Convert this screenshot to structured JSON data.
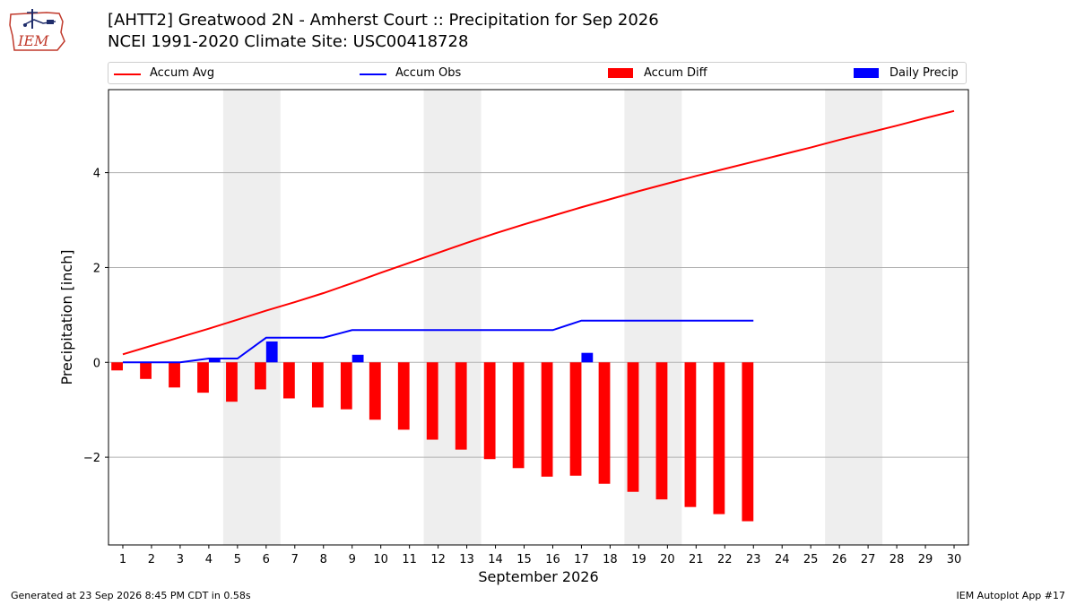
{
  "header": {
    "title": "[AHTT2] Greatwood 2N - Amherst Court :: Precipitation for Sep 2026",
    "subtitle": "NCEI 1991-2020 Climate Site: USC00418728"
  },
  "logo": {
    "text": "IEM",
    "icon": "iem-state-map-logo-icon",
    "color": "#c0392b"
  },
  "footer": {
    "left": "Generated at 23 Sep 2026 8:45 PM CDT in 0.58s",
    "right": "IEM Autoplot App #17"
  },
  "colors": {
    "accum_avg": "#ff0000",
    "accum_obs": "#0000ff",
    "accum_diff": "#ff0000",
    "daily_precip": "#0000ff",
    "weekend_band": "#eeeeee",
    "grid": "#b0b0b0"
  },
  "chart_data": {
    "type": "bar",
    "title": "[AHTT2] Greatwood 2N - Amherst Court :: Precipitation for Sep 2026",
    "xlabel": "September 2026",
    "ylabel": "Precipitation [inch]",
    "xlim": [
      0.5,
      30.5
    ],
    "ylim": [
      -3.85,
      5.75
    ],
    "x_ticks": [
      1,
      2,
      3,
      4,
      5,
      6,
      7,
      8,
      9,
      10,
      11,
      12,
      13,
      14,
      15,
      16,
      17,
      18,
      19,
      20,
      21,
      22,
      23,
      24,
      25,
      26,
      27,
      28,
      29,
      30
    ],
    "y_ticks": [
      -2,
      0,
      2,
      4
    ],
    "y_tick_labels": [
      "−2",
      "0",
      "2",
      "4"
    ],
    "grid": "horizontal",
    "legend_position": "top",
    "shaded_weekends": [
      [
        4.5,
        6.5
      ],
      [
        11.5,
        13.5
      ],
      [
        18.5,
        20.5
      ],
      [
        25.5,
        27.5
      ]
    ],
    "series": [
      {
        "name": "Accum Avg",
        "kind": "line",
        "x": [
          1,
          2,
          3,
          4,
          5,
          6,
          7,
          8,
          9,
          10,
          11,
          12,
          13,
          14,
          15,
          16,
          17,
          18,
          19,
          20,
          21,
          22,
          23,
          24,
          25,
          26,
          27,
          28,
          29,
          30
        ],
        "values": [
          0.17,
          0.35,
          0.53,
          0.71,
          0.9,
          1.09,
          1.27,
          1.46,
          1.67,
          1.89,
          2.1,
          2.31,
          2.52,
          2.72,
          2.91,
          3.09,
          3.27,
          3.44,
          3.61,
          3.77,
          3.93,
          4.08,
          4.23,
          4.38,
          4.53,
          4.69,
          4.84,
          4.99,
          5.15,
          5.3
        ]
      },
      {
        "name": "Accum Obs",
        "kind": "line",
        "x": [
          1,
          2,
          3,
          4,
          5,
          6,
          7,
          8,
          9,
          10,
          11,
          12,
          13,
          14,
          15,
          16,
          17,
          18,
          19,
          20,
          21,
          22,
          23
        ],
        "values": [
          0.0,
          0.0,
          0.0,
          0.08,
          0.08,
          0.52,
          0.52,
          0.52,
          0.68,
          0.68,
          0.68,
          0.68,
          0.68,
          0.68,
          0.68,
          0.68,
          0.88,
          0.88,
          0.88,
          0.88,
          0.88,
          0.88,
          0.88
        ]
      },
      {
        "name": "Accum Diff",
        "kind": "bar",
        "x": [
          1,
          2,
          3,
          4,
          5,
          6,
          7,
          8,
          9,
          10,
          11,
          12,
          13,
          14,
          15,
          16,
          17,
          18,
          19,
          20,
          21,
          22,
          23
        ],
        "values": [
          -0.17,
          -0.35,
          -0.53,
          -0.64,
          -0.83,
          -0.57,
          -0.76,
          -0.95,
          -0.99,
          -1.21,
          -1.42,
          -1.63,
          -1.84,
          -2.04,
          -2.23,
          -2.41,
          -2.39,
          -2.56,
          -2.73,
          -2.89,
          -3.05,
          -3.2,
          -3.35
        ]
      },
      {
        "name": "Daily Precip",
        "kind": "bar",
        "x": [
          1,
          2,
          3,
          4,
          5,
          6,
          7,
          8,
          9,
          10,
          11,
          12,
          13,
          14,
          15,
          16,
          17,
          18,
          19,
          20,
          21,
          22,
          23
        ],
        "values": [
          0,
          0,
          0,
          0.08,
          0,
          0.44,
          0,
          0,
          0.16,
          0,
          0,
          0,
          0,
          0,
          0,
          0,
          0.2,
          0,
          0,
          0,
          0,
          0,
          0
        ]
      }
    ]
  }
}
